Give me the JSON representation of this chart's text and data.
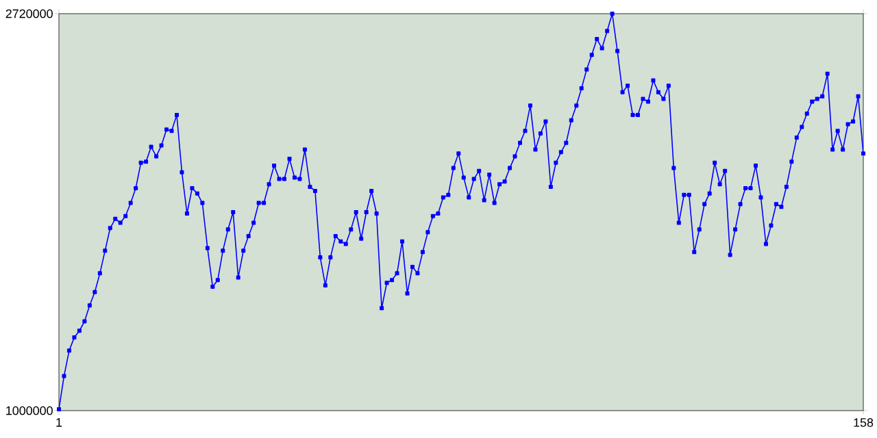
{
  "chart_data": {
    "type": "line",
    "marker": "square",
    "line_style": "solid",
    "grid": false,
    "legend": false,
    "xlim": [
      1,
      158
    ],
    "xticks": [
      1,
      158
    ],
    "ylim": [
      1000000,
      2720000
    ],
    "yticks": [
      1000000,
      2720000
    ],
    "x": [
      1,
      2,
      3,
      4,
      5,
      6,
      7,
      8,
      9,
      10,
      11,
      12,
      13,
      14,
      15,
      16,
      17,
      18,
      19,
      20,
      21,
      22,
      23,
      24,
      25,
      26,
      27,
      28,
      29,
      30,
      31,
      32,
      33,
      34,
      35,
      36,
      37,
      38,
      39,
      40,
      41,
      42,
      43,
      44,
      45,
      46,
      47,
      48,
      49,
      50,
      51,
      52,
      53,
      54,
      55,
      56,
      57,
      58,
      59,
      60,
      61,
      62,
      63,
      64,
      65,
      66,
      67,
      68,
      69,
      70,
      71,
      72,
      73,
      74,
      75,
      76,
      77,
      78,
      79,
      80,
      81,
      82,
      83,
      84,
      85,
      86,
      87,
      88,
      89,
      90,
      91,
      92,
      93,
      94,
      95,
      96,
      97,
      98,
      99,
      100,
      101,
      102,
      103,
      104,
      105,
      106,
      107,
      108,
      109,
      110,
      111,
      112,
      113,
      114,
      115,
      116,
      117,
      118,
      119,
      120,
      121,
      122,
      123,
      124,
      125,
      126,
      127,
      128,
      129,
      130,
      131,
      132,
      133,
      134,
      135,
      136,
      137,
      138,
      139,
      140,
      141,
      142,
      143,
      144,
      145,
      146,
      147,
      148,
      149,
      150,
      151,
      152,
      153,
      154,
      155,
      156,
      157,
      158
    ],
    "series": [
      {
        "color": "#0000ff",
        "values": [
          1006000,
          1150000,
          1260000,
          1317000,
          1346000,
          1387000,
          1456000,
          1514000,
          1595000,
          1693000,
          1791000,
          1831000,
          1814000,
          1843000,
          1900000,
          1964000,
          2074000,
          2079000,
          2143000,
          2102000,
          2149000,
          2218000,
          2212000,
          2281000,
          2033000,
          1854000,
          1964000,
          1941000,
          1900000,
          1704000,
          1537000,
          1566000,
          1693000,
          1785000,
          1860000,
          1577000,
          1693000,
          1756000,
          1814000,
          1900000,
          1900000,
          1981000,
          2062000,
          2004000,
          2004000,
          2091000,
          2010000,
          2004000,
          2131000,
          1970000,
          1952000,
          1664000,
          1543000,
          1664000,
          1756000,
          1733000,
          1722000,
          1785000,
          1860000,
          1745000,
          1860000,
          1952000,
          1854000,
          1444000,
          1554000,
          1566000,
          1595000,
          1733000,
          1508000,
          1623000,
          1595000,
          1687000,
          1773000,
          1843000,
          1854000,
          1924000,
          1935000,
          2051000,
          2114000,
          2010000,
          1924000,
          2004000,
          2039000,
          1912000,
          2022000,
          1900000,
          1981000,
          1993000,
          2051000,
          2102000,
          2160000,
          2212000,
          2322000,
          2131000,
          2201000,
          2253000,
          1970000,
          2074000,
          2120000,
          2160000,
          2258000,
          2322000,
          2397000,
          2478000,
          2541000,
          2610000,
          2570000,
          2645000,
          2720000,
          2558000,
          2380000,
          2408000,
          2281000,
          2281000,
          2351000,
          2339000,
          2431000,
          2380000,
          2351000,
          2408000,
          2051000,
          1814000,
          1935000,
          1935000,
          1687000,
          1785000,
          1895000,
          1941000,
          2074000,
          1981000,
          2039000,
          1675000,
          1785000,
          1895000,
          1964000,
          1964000,
          2062000,
          1924000,
          1722000,
          1802000,
          1895000,
          1883000,
          1970000,
          2079000,
          2183000,
          2229000,
          2287000,
          2339000,
          2351000,
          2362000,
          2460000,
          2131000,
          2212000,
          2131000,
          2241000,
          2253000,
          2362000,
          2114000
        ]
      }
    ]
  }
}
